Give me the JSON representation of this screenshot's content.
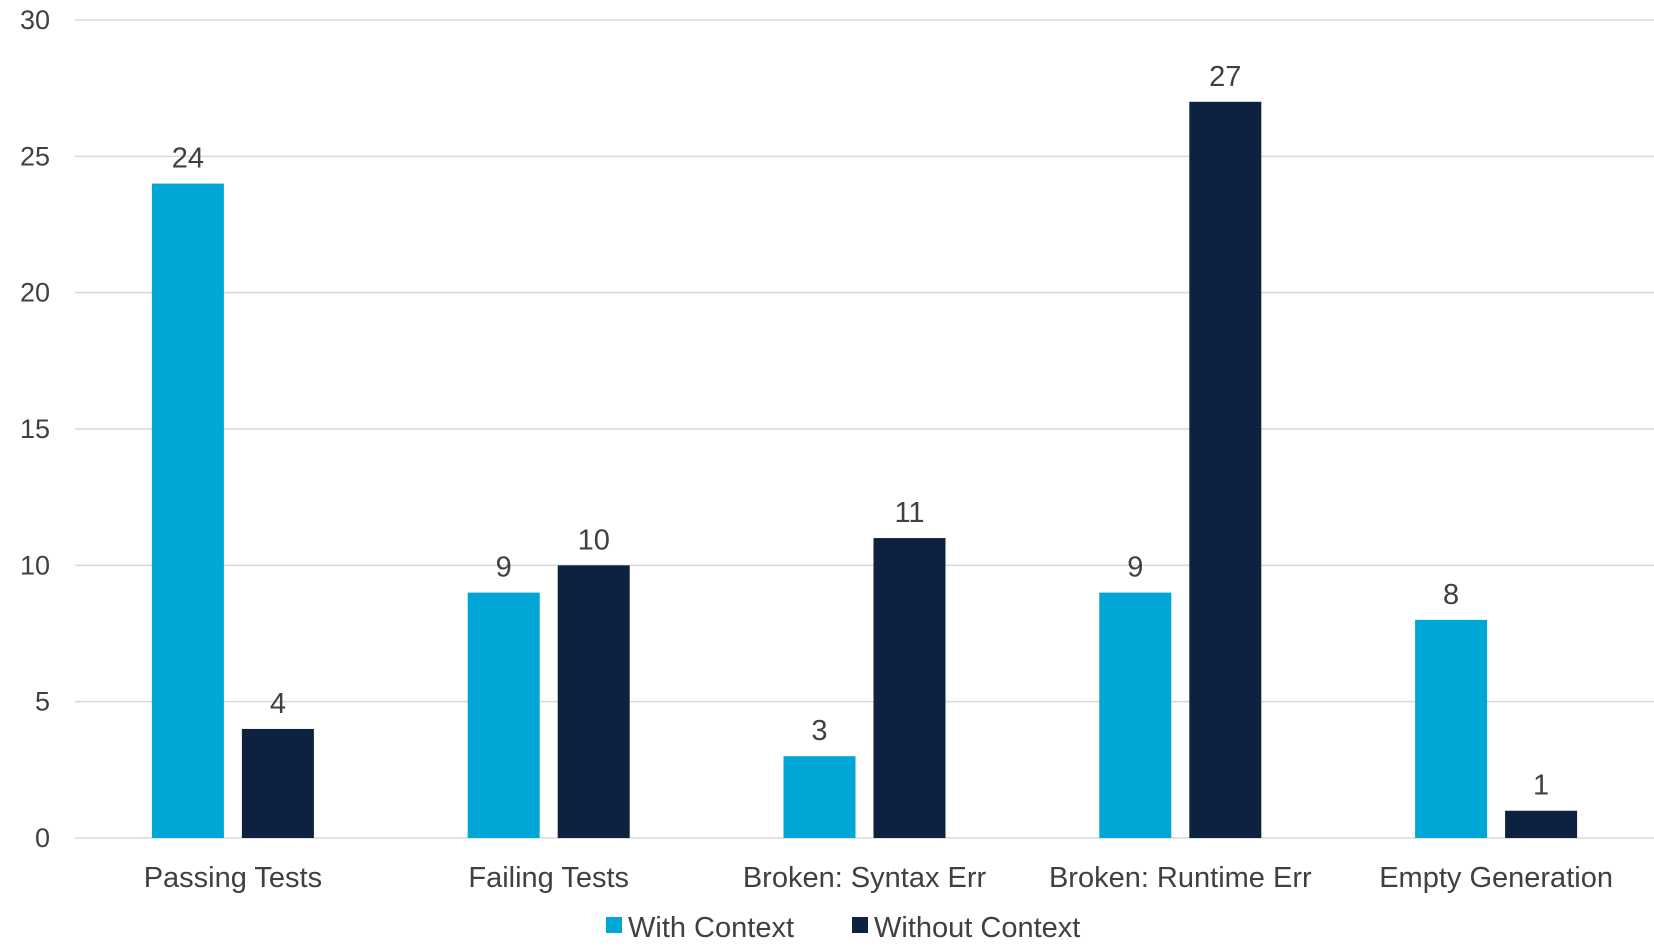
{
  "chart_data": {
    "type": "bar",
    "categories": [
      "Passing Tests",
      "Failing Tests",
      "Broken: Syntax Err",
      "Broken: Runtime Err",
      "Empty Generation"
    ],
    "series": [
      {
        "name": "With Context",
        "values": [
          24,
          9,
          3,
          9,
          8
        ],
        "color": "#00A6D6"
      },
      {
        "name": "Without Context",
        "values": [
          4,
          10,
          11,
          27,
          1
        ],
        "color": "#0D2240"
      }
    ],
    "y_ticks": [
      "0",
      "5",
      "10",
      "15",
      "20",
      "25",
      "30"
    ],
    "ylim": [
      0,
      30
    ],
    "grid": true,
    "legend_position": "bottom-center",
    "gridline_color": "#D9D9D9"
  }
}
